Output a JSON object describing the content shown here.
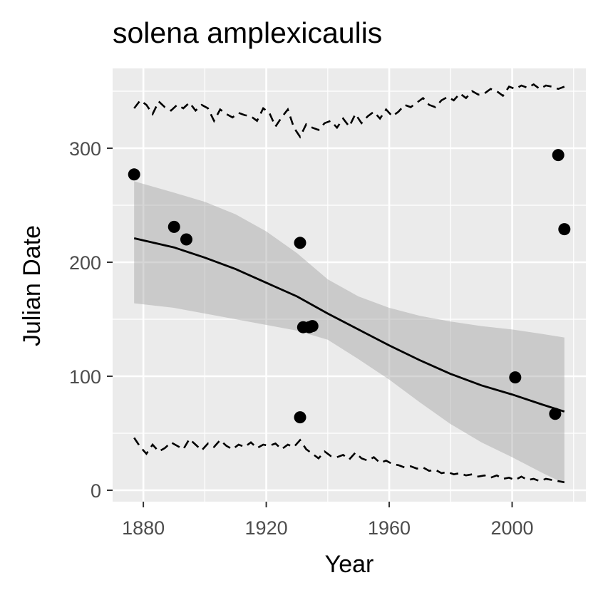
{
  "chart_data": {
    "type": "scatter",
    "title": "solena amplexicaulis",
    "xlabel": "Year",
    "ylabel": "Julian Date",
    "xlim": [
      1870,
      2024
    ],
    "ylim": [
      -10,
      370
    ],
    "x_ticks": [
      1880,
      1920,
      1960,
      2000
    ],
    "y_ticks": [
      0,
      100,
      200,
      300
    ],
    "grid": true,
    "points": [
      {
        "x": 1877,
        "y": 277
      },
      {
        "x": 1890,
        "y": 231
      },
      {
        "x": 1894,
        "y": 220
      },
      {
        "x": 1931,
        "y": 217
      },
      {
        "x": 1931,
        "y": 64
      },
      {
        "x": 1932,
        "y": 143
      },
      {
        "x": 1934,
        "y": 143
      },
      {
        "x": 1935,
        "y": 144
      },
      {
        "x": 2001,
        "y": 99
      },
      {
        "x": 2014,
        "y": 67
      },
      {
        "x": 2015,
        "y": 294
      },
      {
        "x": 2017,
        "y": 229
      }
    ],
    "fit_line": {
      "x": [
        1877,
        1890,
        1900,
        1910,
        1920,
        1930,
        1940,
        1950,
        1960,
        1970,
        1980,
        1990,
        2000,
        2010,
        2017
      ],
      "y": [
        221,
        213,
        204,
        194,
        182,
        170,
        155,
        141,
        127,
        114,
        102,
        92,
        84,
        75,
        69
      ]
    },
    "confidence_band": {
      "x": [
        1877,
        1890,
        1900,
        1910,
        1920,
        1930,
        1940,
        1950,
        1960,
        1970,
        1980,
        1990,
        2000,
        2010,
        2017
      ],
      "lower": [
        164,
        160,
        155,
        150,
        145,
        140,
        132,
        115,
        97,
        77,
        58,
        42,
        29,
        15,
        6
      ],
      "upper": [
        271,
        261,
        253,
        242,
        227,
        208,
        185,
        170,
        160,
        153,
        148,
        144,
        141,
        137,
        134
      ]
    },
    "upper_dashed": {
      "x": [
        1877,
        1879,
        1881,
        1883,
        1885,
        1887,
        1889,
        1891,
        1893,
        1895,
        1897,
        1899,
        1901,
        1903,
        1905,
        1907,
        1909,
        1911,
        1913,
        1915,
        1917,
        1919,
        1921,
        1923,
        1925,
        1927,
        1929,
        1931,
        1933,
        1935,
        1937,
        1939,
        1941,
        1943,
        1945,
        1947,
        1949,
        1951,
        1953,
        1955,
        1957,
        1959,
        1961,
        1963,
        1965,
        1967,
        1969,
        1971,
        1973,
        1975,
        1977,
        1979,
        1981,
        1983,
        1985,
        1987,
        1989,
        1991,
        1993,
        1995,
        1997,
        1999,
        2001,
        2003,
        2005,
        2007,
        2009,
        2011,
        2013,
        2015,
        2017
      ],
      "y": [
        335,
        342,
        338,
        330,
        341,
        336,
        333,
        338,
        335,
        340,
        333,
        338,
        335,
        324,
        334,
        330,
        327,
        331,
        329,
        328,
        324,
        335,
        331,
        319,
        327,
        334,
        318,
        310,
        321,
        318,
        316,
        322,
        324,
        318,
        326,
        319,
        330,
        322,
        328,
        332,
        326,
        334,
        328,
        332,
        338,
        336,
        340,
        344,
        338,
        336,
        342,
        345,
        342,
        348,
        344,
        350,
        347,
        348,
        352,
        350,
        346,
        354,
        352,
        355,
        353,
        356,
        352,
        355,
        354,
        352,
        354
      ]
    },
    "lower_dashed": {
      "x": [
        1877,
        1879,
        1881,
        1883,
        1885,
        1887,
        1889,
        1891,
        1893,
        1895,
        1897,
        1899,
        1901,
        1903,
        1905,
        1907,
        1909,
        1911,
        1913,
        1915,
        1917,
        1919,
        1921,
        1923,
        1925,
        1927,
        1929,
        1931,
        1933,
        1935,
        1937,
        1939,
        1941,
        1943,
        1945,
        1947,
        1949,
        1951,
        1953,
        1955,
        1957,
        1959,
        1961,
        1963,
        1965,
        1967,
        1969,
        1971,
        1973,
        1975,
        1977,
        1979,
        1981,
        1983,
        1985,
        1987,
        1989,
        1991,
        1993,
        1995,
        1997,
        1999,
        2001,
        2003,
        2005,
        2007,
        2009,
        2011,
        2013,
        2015,
        2017
      ],
      "y": [
        46,
        38,
        32,
        40,
        34,
        37,
        42,
        39,
        36,
        45,
        40,
        35,
        41,
        38,
        44,
        39,
        36,
        40,
        38,
        42,
        37,
        40,
        39,
        41,
        36,
        40,
        38,
        44,
        36,
        32,
        28,
        34,
        30,
        29,
        31,
        27,
        33,
        28,
        26,
        29,
        24,
        26,
        23,
        22,
        20,
        21,
        19,
        20,
        17,
        18,
        15,
        16,
        14,
        15,
        13,
        14,
        12,
        13,
        11,
        13,
        10,
        11,
        9,
        12,
        9,
        10,
        8,
        10,
        9,
        8,
        7
      ]
    }
  }
}
